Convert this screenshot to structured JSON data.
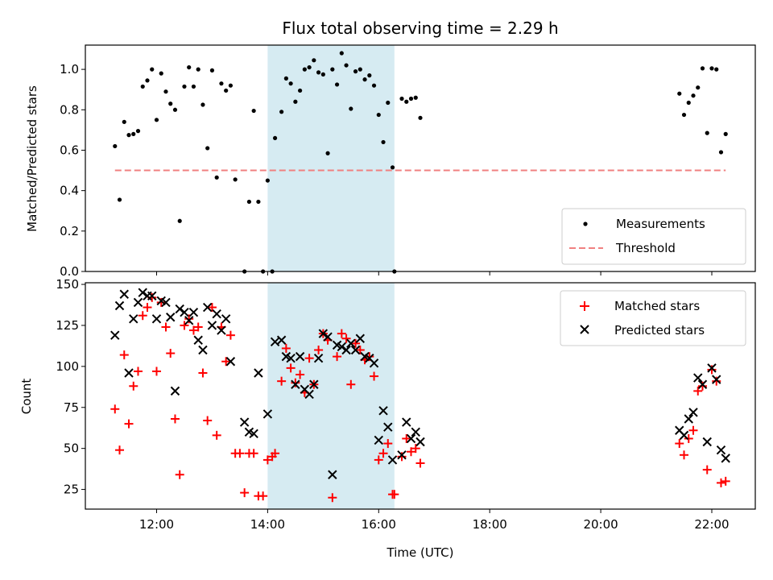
{
  "title": "Flux total observing time = 2.29 h",
  "colors": {
    "measurement": "#000000",
    "threshold": "#f08080",
    "matched": "#ff0000",
    "predicted": "#000000",
    "span": "#add8e6"
  },
  "chart_data": [
    {
      "type": "scatter",
      "panel": "top",
      "ylabel": "Matched/Predicted stars",
      "xlabel": "",
      "xlim": [
        "10:43",
        "22:47"
      ],
      "ylim": [
        0,
        1.12
      ],
      "yticks": [
        "0.0",
        "0.2",
        "0.4",
        "0.6",
        "0.8",
        "1.0"
      ],
      "xticks": [
        "12:00",
        "14:00",
        "16:00",
        "18:00",
        "20:00",
        "22:00"
      ],
      "highlight_span": [
        "14:00",
        "16:17"
      ],
      "threshold": {
        "y": 0.5,
        "x": [
          "11:15",
          "22:15"
        ]
      },
      "legend": {
        "position": "lower-right",
        "entries": [
          "Measurements",
          "Threshold"
        ]
      },
      "series": [
        {
          "name": "Measurements",
          "marker": "dot",
          "points": [
            [
              "11:15",
              0.62
            ],
            [
              "11:20",
              0.355
            ],
            [
              "11:25",
              0.74
            ],
            [
              "11:30",
              0.675
            ],
            [
              "11:35",
              0.68
            ],
            [
              "11:40",
              0.695
            ],
            [
              "11:45",
              0.915
            ],
            [
              "11:50",
              0.945
            ],
            [
              "11:55",
              1.0
            ],
            [
              "12:00",
              0.75
            ],
            [
              "12:05",
              0.98
            ],
            [
              "12:10",
              0.89
            ],
            [
              "12:15",
              0.83
            ],
            [
              "12:20",
              0.8
            ],
            [
              "12:25",
              0.25
            ],
            [
              "12:30",
              0.915
            ],
            [
              "12:35",
              1.01
            ],
            [
              "12:40",
              0.915
            ],
            [
              "12:45",
              1.0
            ],
            [
              "12:50",
              0.825
            ],
            [
              "12:55",
              0.61
            ],
            [
              "13:00",
              0.995
            ],
            [
              "13:05",
              0.465
            ],
            [
              "13:10",
              0.93
            ],
            [
              "13:15",
              0.895
            ],
            [
              "13:20",
              0.92
            ],
            [
              "13:25",
              0.455
            ],
            [
              "13:35",
              0.0
            ],
            [
              "13:40",
              0.345
            ],
            [
              "13:45",
              0.795
            ],
            [
              "13:50",
              0.345
            ],
            [
              "13:55",
              0.0
            ],
            [
              "14:00",
              0.45
            ],
            [
              "14:05",
              0.0
            ],
            [
              "14:08",
              0.66
            ],
            [
              "14:15",
              0.79
            ],
            [
              "14:20",
              0.955
            ],
            [
              "14:25",
              0.93
            ],
            [
              "14:30",
              0.84
            ],
            [
              "14:35",
              0.895
            ],
            [
              "14:40",
              1.0
            ],
            [
              "14:45",
              1.01
            ],
            [
              "14:50",
              1.045
            ],
            [
              "14:55",
              0.985
            ],
            [
              "15:00",
              0.975
            ],
            [
              "15:05",
              0.585
            ],
            [
              "15:10",
              1.0
            ],
            [
              "15:15",
              0.925
            ],
            [
              "15:20",
              1.08
            ],
            [
              "15:25",
              1.02
            ],
            [
              "15:30",
              0.805
            ],
            [
              "15:35",
              0.99
            ],
            [
              "15:40",
              1.0
            ],
            [
              "15:45",
              0.95
            ],
            [
              "15:50",
              0.97
            ],
            [
              "15:55",
              0.92
            ],
            [
              "16:00",
              0.775
            ],
            [
              "16:05",
              0.64
            ],
            [
              "16:10",
              0.835
            ],
            [
              "16:15",
              0.515
            ],
            [
              "16:17",
              0.0
            ],
            [
              "16:25",
              0.855
            ],
            [
              "16:30",
              0.84
            ],
            [
              "16:35",
              0.855
            ],
            [
              "16:40",
              0.86
            ],
            [
              "16:45",
              0.76
            ],
            [
              "21:25",
              0.88
            ],
            [
              "21:30",
              0.775
            ],
            [
              "21:35",
              0.835
            ],
            [
              "21:40",
              0.87
            ],
            [
              "21:45",
              0.91
            ],
            [
              "21:50",
              1.005
            ],
            [
              "21:55",
              0.685
            ],
            [
              "22:00",
              1.005
            ],
            [
              "22:05",
              1.0
            ],
            [
              "22:10",
              0.59
            ],
            [
              "22:15",
              0.68
            ]
          ]
        }
      ]
    },
    {
      "type": "scatter",
      "panel": "bottom",
      "ylabel": "Count",
      "xlabel": "Time (UTC)",
      "xlim": [
        "10:43",
        "22:47"
      ],
      "ylim": [
        13,
        151
      ],
      "yticks": [
        "25",
        "50",
        "75",
        "100",
        "125",
        "150"
      ],
      "xticks": [
        "12:00",
        "14:00",
        "16:00",
        "18:00",
        "20:00",
        "22:00"
      ],
      "highlight_span": [
        "14:00",
        "16:17"
      ],
      "legend": {
        "position": "top-right",
        "entries": [
          "Matched stars",
          "Predicted stars"
        ]
      },
      "series": [
        {
          "name": "Matched stars",
          "marker": "plus",
          "points": [
            [
              "11:15",
              74
            ],
            [
              "11:20",
              49
            ],
            [
              "11:25",
              107
            ],
            [
              "11:30",
              65
            ],
            [
              "11:35",
              88
            ],
            [
              "11:40",
              97
            ],
            [
              "11:45",
              131
            ],
            [
              "11:50",
              136
            ],
            [
              "11:55",
              142
            ],
            [
              "12:00",
              97
            ],
            [
              "12:05",
              139
            ],
            [
              "12:10",
              124
            ],
            [
              "12:15",
              108
            ],
            [
              "12:20",
              68
            ],
            [
              "12:25",
              34
            ],
            [
              "12:30",
              125
            ],
            [
              "12:35",
              129
            ],
            [
              "12:40",
              122
            ],
            [
              "12:45",
              124
            ],
            [
              "12:50",
              96
            ],
            [
              "12:55",
              67
            ],
            [
              "13:00",
              136
            ],
            [
              "13:05",
              58
            ],
            [
              "13:10",
              124
            ],
            [
              "13:15",
              103
            ],
            [
              "13:20",
              119
            ],
            [
              "13:25",
              47
            ],
            [
              "13:30",
              47
            ],
            [
              "13:35",
              23
            ],
            [
              "13:40",
              47
            ],
            [
              "13:45",
              47
            ],
            [
              "13:50",
              21
            ],
            [
              "13:55",
              21
            ],
            [
              "14:00",
              43
            ],
            [
              "14:05",
              45
            ],
            [
              "14:08",
              47
            ],
            [
              "14:15",
              91
            ],
            [
              "14:20",
              111
            ],
            [
              "14:25",
              99
            ],
            [
              "14:30",
              90
            ],
            [
              "14:35",
              95
            ],
            [
              "14:40",
              84
            ],
            [
              "14:45",
              105
            ],
            [
              "14:50",
              89
            ],
            [
              "14:55",
              110
            ],
            [
              "15:00",
              120
            ],
            [
              "15:05",
              116
            ],
            [
              "15:10",
              20
            ],
            [
              "15:15",
              106
            ],
            [
              "15:20",
              120
            ],
            [
              "15:25",
              117
            ],
            [
              "15:30",
              89
            ],
            [
              "15:35",
              114
            ],
            [
              "15:40",
              110
            ],
            [
              "15:45",
              104
            ],
            [
              "15:50",
              106
            ],
            [
              "15:55",
              94
            ],
            [
              "16:00",
              43
            ],
            [
              "16:05",
              47
            ],
            [
              "16:10",
              53
            ],
            [
              "16:15",
              22
            ],
            [
              "16:17",
              22
            ],
            [
              "16:25",
              45
            ],
            [
              "16:30",
              56
            ],
            [
              "16:35",
              48
            ],
            [
              "16:40",
              50
            ],
            [
              "16:45",
              41
            ],
            [
              "21:25",
              53
            ],
            [
              "21:30",
              46
            ],
            [
              "21:35",
              56
            ],
            [
              "21:40",
              61
            ],
            [
              "21:45",
              85
            ],
            [
              "21:50",
              88
            ],
            [
              "21:55",
              37
            ],
            [
              "22:00",
              98
            ],
            [
              "22:05",
              91
            ],
            [
              "22:10",
              29
            ],
            [
              "22:15",
              30
            ]
          ]
        },
        {
          "name": "Predicted stars",
          "marker": "x",
          "points": [
            [
              "11:15",
              119
            ],
            [
              "11:20",
              137
            ],
            [
              "11:25",
              144
            ],
            [
              "11:30",
              96
            ],
            [
              "11:35",
              129
            ],
            [
              "11:40",
              139
            ],
            [
              "11:45",
              145
            ],
            [
              "11:50",
              143
            ],
            [
              "11:55",
              143
            ],
            [
              "12:00",
              129
            ],
            [
              "12:05",
              140
            ],
            [
              "12:10",
              139
            ],
            [
              "12:15",
              130
            ],
            [
              "12:20",
              85
            ],
            [
              "12:25",
              135
            ],
            [
              "12:30",
              133
            ],
            [
              "12:35",
              128
            ],
            [
              "12:40",
              133
            ],
            [
              "12:45",
              116
            ],
            [
              "12:50",
              110
            ],
            [
              "12:55",
              136
            ],
            [
              "13:00",
              125
            ],
            [
              "13:05",
              132
            ],
            [
              "13:10",
              122
            ],
            [
              "13:15",
              129
            ],
            [
              "13:20",
              103
            ],
            [
              "13:35",
              66
            ],
            [
              "13:40",
              60
            ],
            [
              "13:45",
              59
            ],
            [
              "13:50",
              96
            ],
            [
              "14:00",
              71
            ],
            [
              "14:08",
              115
            ],
            [
              "14:15",
              116
            ],
            [
              "14:20",
              106
            ],
            [
              "14:25",
              105
            ],
            [
              "14:30",
              89
            ],
            [
              "14:35",
              106
            ],
            [
              "14:40",
              86
            ],
            [
              "14:45",
              83
            ],
            [
              "14:50",
              89
            ],
            [
              "14:55",
              105
            ],
            [
              "15:00",
              120
            ],
            [
              "15:05",
              118
            ],
            [
              "15:10",
              34
            ],
            [
              "15:15",
              113
            ],
            [
              "15:20",
              112
            ],
            [
              "15:25",
              110
            ],
            [
              "15:30",
              114
            ],
            [
              "15:35",
              110
            ],
            [
              "15:40",
              117
            ],
            [
              "15:45",
              106
            ],
            [
              "15:50",
              105
            ],
            [
              "15:55",
              102
            ],
            [
              "16:00",
              55
            ],
            [
              "16:05",
              73
            ],
            [
              "16:10",
              63
            ],
            [
              "16:15",
              43
            ],
            [
              "16:25",
              46
            ],
            [
              "16:30",
              66
            ],
            [
              "16:35",
              56
            ],
            [
              "16:40",
              60
            ],
            [
              "16:45",
              54
            ],
            [
              "21:25",
              61
            ],
            [
              "21:30",
              58
            ],
            [
              "21:35",
              68
            ],
            [
              "21:40",
              72
            ],
            [
              "21:45",
              93
            ],
            [
              "21:50",
              89
            ],
            [
              "21:55",
              54
            ],
            [
              "22:00",
              99
            ],
            [
              "22:05",
              92
            ],
            [
              "22:10",
              49
            ],
            [
              "22:15",
              44
            ]
          ]
        }
      ]
    }
  ]
}
